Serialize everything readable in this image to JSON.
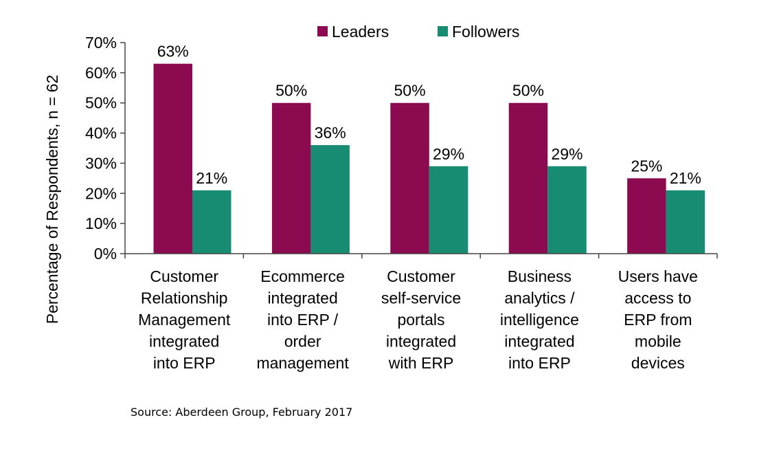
{
  "chart_data": {
    "type": "bar",
    "title": "",
    "xlabel": "",
    "ylabel": "Percentage of Respondents, n = 62",
    "ylim": [
      0,
      70
    ],
    "yticks": [
      0,
      10,
      20,
      30,
      40,
      50,
      60,
      70
    ],
    "ytick_labels": [
      "0%",
      "10%",
      "20%",
      "30%",
      "40%",
      "50%",
      "60%",
      "70%"
    ],
    "grid": false,
    "legend_position": "top",
    "categories": [
      [
        "Customer",
        "Relationship",
        "Management",
        "integrated",
        "into ERP"
      ],
      [
        "Ecommerce",
        "integrated",
        "into ERP /",
        "order",
        "management"
      ],
      [
        "Customer",
        "self-service",
        "portals",
        "integrated",
        "with ERP"
      ],
      [
        "Business",
        "analytics /",
        "intelligence",
        "integrated",
        "into ERP"
      ],
      [
        "Users have",
        "access to",
        "ERP from",
        "mobile",
        "devices"
      ]
    ],
    "series": [
      {
        "name": "Leaders",
        "color": "#8B0A50",
        "values": [
          63,
          50,
          50,
          50,
          25
        ],
        "labels": [
          "63%",
          "50%",
          "50%",
          "50%",
          "25%"
        ]
      },
      {
        "name": "Followers",
        "color": "#178C72",
        "values": [
          21,
          36,
          29,
          29,
          21
        ],
        "labels": [
          "21%",
          "36%",
          "29%",
          "29%",
          "21%"
        ]
      }
    ]
  },
  "source": "Source: Aberdeen Group, February 2017"
}
